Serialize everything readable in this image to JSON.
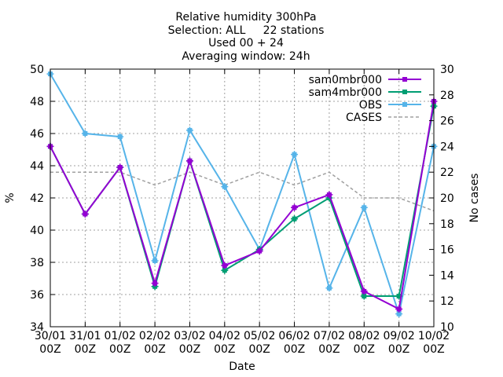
{
  "chart_data": {
    "type": "line",
    "title_lines": [
      "Relative humidity 300hPa",
      "Selection: ALL     22 stations",
      "Used 00 + 24",
      "Averaging window: 24h"
    ],
    "xlabel": "Date",
    "ylabel": "%",
    "y2label": "No cases",
    "categories": [
      [
        "30/01",
        "00Z"
      ],
      [
        "31/01",
        "00Z"
      ],
      [
        "01/02",
        "00Z"
      ],
      [
        "02/02",
        "00Z"
      ],
      [
        "03/02",
        "00Z"
      ],
      [
        "04/02",
        "00Z"
      ],
      [
        "05/02",
        "00Z"
      ],
      [
        "06/02",
        "00Z"
      ],
      [
        "07/02",
        "00Z"
      ],
      [
        "08/02",
        "00Z"
      ],
      [
        "09/02",
        "00Z"
      ],
      [
        "10/02",
        "00Z"
      ]
    ],
    "ylim": [
      34,
      50
    ],
    "yticks": [
      34,
      36,
      38,
      40,
      42,
      44,
      46,
      48,
      50
    ],
    "y2lim": [
      10,
      30
    ],
    "y2ticks": [
      10,
      12,
      14,
      16,
      18,
      20,
      22,
      24,
      26,
      28,
      30
    ],
    "grid": true,
    "legend_position": "top-right",
    "series": [
      {
        "name": "sam0mbr000",
        "axis": "y",
        "color": "#9400d3",
        "marker": "filled-square-plus",
        "dashed": false,
        "values": [
          45.2,
          41.0,
          43.9,
          36.7,
          44.3,
          37.8,
          38.7,
          41.4,
          42.2,
          36.2,
          35.1,
          48.0
        ]
      },
      {
        "name": "sam4mbr000",
        "axis": "y",
        "color": "#009e73",
        "marker": "filled-square-plus",
        "dashed": false,
        "values": [
          45.2,
          41.0,
          43.9,
          36.5,
          44.3,
          37.5,
          38.8,
          40.7,
          42.0,
          35.9,
          35.9,
          47.7
        ]
      },
      {
        "name": "OBS",
        "axis": "y",
        "color": "#56b4e9",
        "marker": "filled-square-plus",
        "dashed": false,
        "values": [
          49.7,
          46.0,
          45.8,
          38.1,
          46.2,
          42.7,
          38.8,
          44.7,
          36.4,
          41.4,
          34.8,
          45.2
        ]
      },
      {
        "name": "CASES",
        "axis": "y2",
        "color": "#a0a0a0",
        "marker": "none",
        "dashed": true,
        "values": [
          22,
          22,
          22,
          21,
          22,
          21,
          22,
          21,
          22,
          20,
          20,
          19
        ]
      }
    ]
  }
}
